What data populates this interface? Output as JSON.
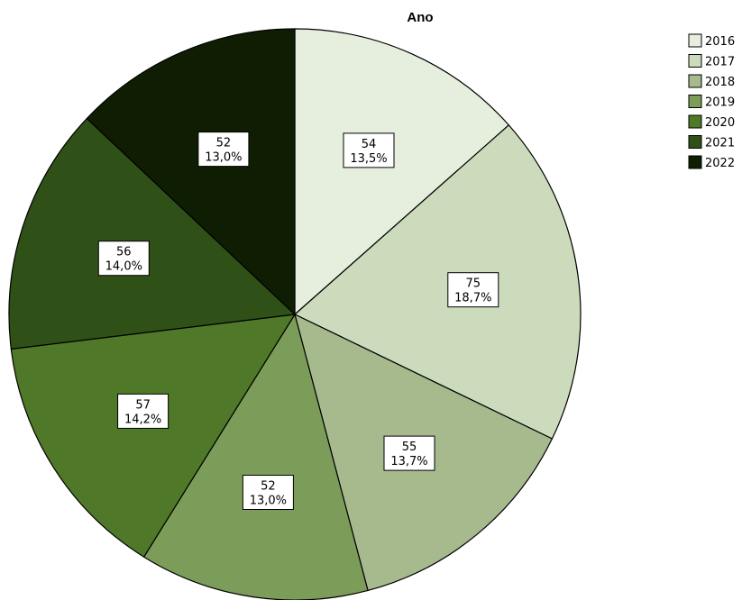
{
  "chart_data": {
    "type": "pie",
    "title": "Ano",
    "categories": [
      "2016",
      "2017",
      "2018",
      "2019",
      "2020",
      "2021",
      "2022"
    ],
    "values": [
      54,
      75,
      55,
      52,
      57,
      56,
      52
    ],
    "percent_labels": [
      "13,5%",
      "18,7%",
      "13,7%",
      "13,0%",
      "14,2%",
      "14,0%",
      "13,0%"
    ],
    "colors": [
      "#e6eedd",
      "#ccdbbb",
      "#a6ba8e",
      "#7c9d5a",
      "#4f7828",
      "#2f5117",
      "#0f1e03"
    ],
    "start_angle": "12 o'clock",
    "direction": "clockwise",
    "legend_position": "top-right"
  }
}
